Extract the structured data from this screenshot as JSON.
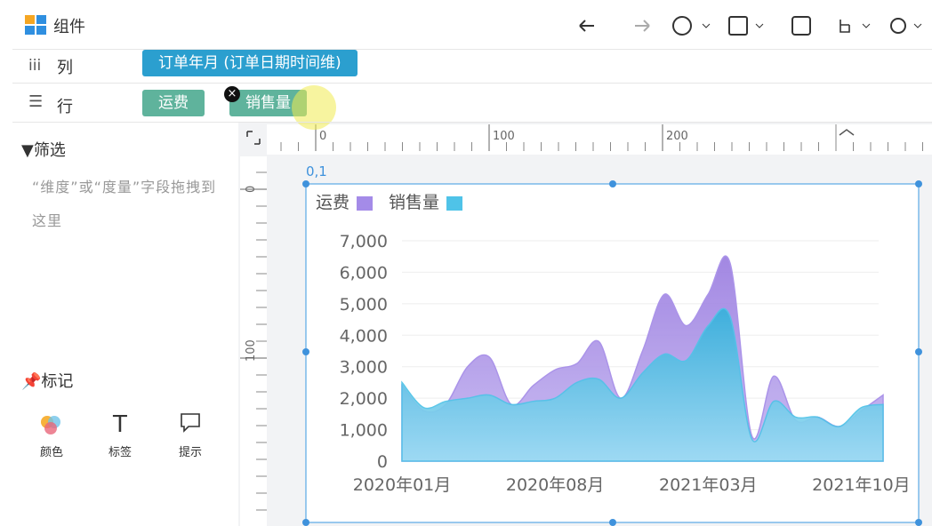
{
  "toolbar": {
    "title": "组件"
  },
  "columns": {
    "label": "列",
    "fields": [
      "订单年月 (订单日期时间维)"
    ]
  },
  "rows": {
    "label": "行",
    "fields": [
      "运费",
      "销售量"
    ]
  },
  "filter": {
    "title": "筛选",
    "placeholder": "“维度”或“度量”字段拖拽到这里"
  },
  "marks": {
    "title": "标记",
    "items": [
      "颜色",
      "标签",
      "提示"
    ]
  },
  "ruler": {
    "horizontal": [
      0,
      100,
      200
    ],
    "vertical": [
      0,
      100
    ]
  },
  "selection_label": "0,1",
  "chart_data": {
    "type": "area",
    "categories": [
      "2020年01月",
      null,
      null,
      null,
      null,
      null,
      null,
      "2020年08月",
      null,
      null,
      null,
      null,
      null,
      null,
      "2021年03月",
      null,
      null,
      null,
      null,
      null,
      null,
      "2021年10月",
      null
    ],
    "series": [
      {
        "name": "运费",
        "color": "#a48be8",
        "values": [
          2400,
          1600,
          1800,
          3000,
          3300,
          1800,
          2400,
          2900,
          3100,
          3800,
          2000,
          3500,
          5300,
          4300,
          5300,
          6300,
          800,
          2700,
          1300,
          1400,
          1100,
          1600,
          2100
        ]
      },
      {
        "name": "销售量",
        "color": "#4fc3e8",
        "values": [
          2500,
          1700,
          1900,
          2000,
          2100,
          1800,
          1900,
          2000,
          2500,
          2600,
          2000,
          2800,
          3400,
          3200,
          4300,
          4600,
          700,
          1900,
          1400,
          1400,
          1100,
          1700,
          1800
        ]
      }
    ],
    "ylim": [
      0,
      7000
    ],
    "yticks": [
      0,
      {
        "value": 1000,
        "label": "1,000"
      },
      {
        "value": 2000,
        "label": "2,000"
      },
      {
        "value": 3000,
        "label": "3,000"
      },
      {
        "value": 4000,
        "label": "4,000"
      },
      {
        "value": 5000,
        "label": "5,000"
      },
      {
        "value": 6000,
        "label": "6,000"
      },
      {
        "value": 7000,
        "label": "7,000"
      }
    ],
    "grid": true,
    "legend": "top-left"
  }
}
